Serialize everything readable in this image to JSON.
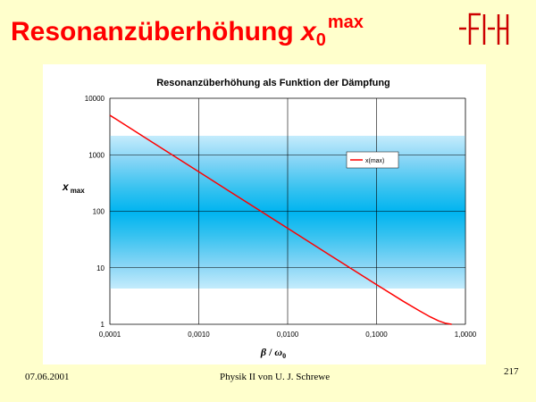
{
  "slide": {
    "title_text": "Resonanzüberhöhung ",
    "title_symbol": "x",
    "title_subscript": "0",
    "title_superscript": "max",
    "date": "07.06.2001",
    "course": "Physik II von U. J. Schrewe",
    "page_number": "217"
  },
  "colors": {
    "title": "#ff0000",
    "background": "#ffffcc",
    "series_line": "#ff0000",
    "band_core": "#00b4f0",
    "band_edge": "#c4ecfc",
    "plot_background": "#ffffff",
    "grid": "#000000"
  },
  "logo": {
    "name": "fh-logo"
  },
  "chart_data": {
    "type": "line",
    "title": "Resonanzüberhöhung als Funktion der Dämpfung",
    "xlabel": "β / ω0",
    "xlabel_parts": {
      "beta": "β",
      "slash": " / ",
      "omega": "ω",
      "sub": "0"
    },
    "ylabel": "x max",
    "ylabel_parts": {
      "x": "x",
      "sub": "max"
    },
    "xscale": "log",
    "yscale": "log",
    "xlim": [
      0.0001,
      1
    ],
    "ylim": [
      1,
      10000
    ],
    "grid": true,
    "legend_position": "right",
    "x_ticks": [
      0.0001,
      0.001,
      0.01,
      0.1,
      1
    ],
    "x_tick_labels": [
      "0,0001",
      "0,0010",
      "0,0100",
      "0,1000",
      "1,0000"
    ],
    "y_ticks": [
      1,
      10,
      100,
      1000,
      10000
    ],
    "y_tick_labels": [
      "1",
      "10",
      "100",
      "1000",
      "10000"
    ],
    "series": [
      {
        "name": "x(max)",
        "x": [
          0.0001,
          0.0003,
          0.001,
          0.003,
          0.01,
          0.03,
          0.1,
          0.2,
          0.3,
          0.4,
          0.5,
          0.6,
          0.7
        ],
        "y": [
          5000,
          1667,
          500,
          166.7,
          50,
          16.7,
          5.03,
          2.55,
          1.75,
          1.36,
          1.15,
          1.04,
          1.0
        ]
      }
    ]
  }
}
